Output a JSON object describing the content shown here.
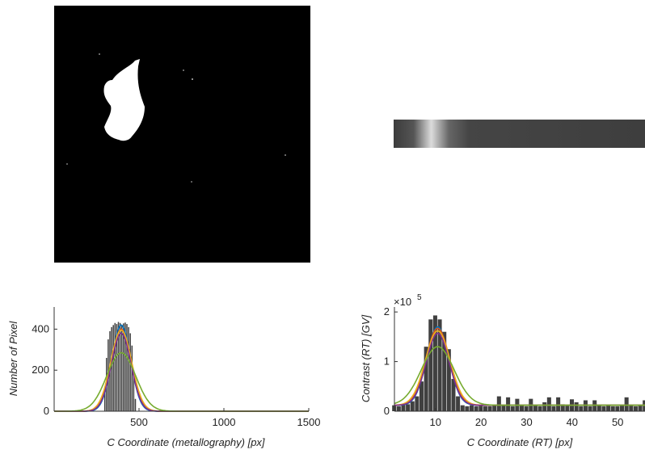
{
  "chart_data": [
    {
      "type": "bar",
      "xlabel": "C Coordinate (metallography) [px]",
      "ylabel": "Number of Pixel",
      "xlim": [
        0,
        1500
      ],
      "ylim": [
        0,
        500
      ],
      "xticks": [
        500,
        1000,
        1500
      ],
      "yticks": [
        0,
        200,
        400
      ],
      "bins": [
        {
          "x": 300,
          "y": 120
        },
        {
          "x": 310,
          "y": 260
        },
        {
          "x": 320,
          "y": 350
        },
        {
          "x": 330,
          "y": 390
        },
        {
          "x": 340,
          "y": 410
        },
        {
          "x": 350,
          "y": 420
        },
        {
          "x": 360,
          "y": 430
        },
        {
          "x": 370,
          "y": 425
        },
        {
          "x": 380,
          "y": 435
        },
        {
          "x": 390,
          "y": 430
        },
        {
          "x": 400,
          "y": 420
        },
        {
          "x": 410,
          "y": 428
        },
        {
          "x": 420,
          "y": 432
        },
        {
          "x": 430,
          "y": 425
        },
        {
          "x": 440,
          "y": 410
        },
        {
          "x": 450,
          "y": 380
        },
        {
          "x": 460,
          "y": 320
        },
        {
          "x": 470,
          "y": 200
        },
        {
          "x": 480,
          "y": 60
        }
      ],
      "fits": [
        {
          "color": "#0072bd",
          "mu": 395,
          "sigma": 55,
          "amp": 420
        },
        {
          "color": "#d95319",
          "mu": 395,
          "sigma": 60,
          "amp": 400
        },
        {
          "color": "#edb120",
          "mu": 395,
          "sigma": 62,
          "amp": 395
        },
        {
          "color": "#7e2f8e",
          "mu": 395,
          "sigma": 58,
          "amp": 380
        },
        {
          "color": "#77ac30",
          "mu": 395,
          "sigma": 85,
          "amp": 285
        }
      ]
    },
    {
      "type": "bar",
      "xlabel": "C Coordinate (RT) [px]",
      "ylabel": "Contrast (RT) [GV]",
      "y_exponent": "×10",
      "y_exponent_power": "5",
      "xlim": [
        1,
        56
      ],
      "ylim": [
        0,
        2.1
      ],
      "xticks": [
        10,
        20,
        30,
        40,
        50
      ],
      "yticks": [
        0,
        1,
        2
      ],
      "bins": [
        {
          "x": 1,
          "y": 0.12
        },
        {
          "x": 2,
          "y": 0.1
        },
        {
          "x": 3,
          "y": 0.15
        },
        {
          "x": 4,
          "y": 0.14
        },
        {
          "x": 5,
          "y": 0.2
        },
        {
          "x": 6,
          "y": 0.3
        },
        {
          "x": 7,
          "y": 0.6
        },
        {
          "x": 8,
          "y": 1.3
        },
        {
          "x": 9,
          "y": 1.85
        },
        {
          "x": 10,
          "y": 1.93
        },
        {
          "x": 11,
          "y": 1.85
        },
        {
          "x": 12,
          "y": 1.6
        },
        {
          "x": 13,
          "y": 1.25
        },
        {
          "x": 14,
          "y": 0.65
        },
        {
          "x": 15,
          "y": 0.3
        },
        {
          "x": 16,
          "y": 0.12
        },
        {
          "x": 17,
          "y": 0.1
        },
        {
          "x": 18,
          "y": 0.12
        },
        {
          "x": 19,
          "y": 0.1
        },
        {
          "x": 20,
          "y": 0.12
        },
        {
          "x": 21,
          "y": 0.1
        },
        {
          "x": 22,
          "y": 0.1
        },
        {
          "x": 23,
          "y": 0.13
        },
        {
          "x": 24,
          "y": 0.3
        },
        {
          "x": 25,
          "y": 0.12
        },
        {
          "x": 26,
          "y": 0.28
        },
        {
          "x": 27,
          "y": 0.1
        },
        {
          "x": 28,
          "y": 0.25
        },
        {
          "x": 29,
          "y": 0.12
        },
        {
          "x": 30,
          "y": 0.1
        },
        {
          "x": 31,
          "y": 0.25
        },
        {
          "x": 32,
          "y": 0.12
        },
        {
          "x": 33,
          "y": 0.1
        },
        {
          "x": 34,
          "y": 0.18
        },
        {
          "x": 35,
          "y": 0.28
        },
        {
          "x": 36,
          "y": 0.1
        },
        {
          "x": 37,
          "y": 0.28
        },
        {
          "x": 38,
          "y": 0.14
        },
        {
          "x": 39,
          "y": 0.12
        },
        {
          "x": 40,
          "y": 0.24
        },
        {
          "x": 41,
          "y": 0.18
        },
        {
          "x": 42,
          "y": 0.1
        },
        {
          "x": 43,
          "y": 0.22
        },
        {
          "x": 44,
          "y": 0.1
        },
        {
          "x": 45,
          "y": 0.22
        },
        {
          "x": 46,
          "y": 0.12
        },
        {
          "x": 47,
          "y": 0.1
        },
        {
          "x": 48,
          "y": 0.12
        },
        {
          "x": 49,
          "y": 0.1
        },
        {
          "x": 50,
          "y": 0.1
        },
        {
          "x": 51,
          "y": 0.12
        },
        {
          "x": 52,
          "y": 0.28
        },
        {
          "x": 53,
          "y": 0.12
        },
        {
          "x": 54,
          "y": 0.1
        },
        {
          "x": 55,
          "y": 0.12
        },
        {
          "x": 56,
          "y": 0.22
        }
      ],
      "fits": [
        {
          "color": "#0072bd",
          "mu": 10.5,
          "sigma": 2.4,
          "amp": 1.58,
          "base": 0.12
        },
        {
          "color": "#d95319",
          "mu": 10.5,
          "sigma": 2.6,
          "amp": 1.55,
          "base": 0.12
        },
        {
          "color": "#edb120",
          "mu": 10.5,
          "sigma": 2.7,
          "amp": 1.5,
          "base": 0.12
        },
        {
          "color": "#7e2f8e",
          "mu": 10.5,
          "sigma": 2.5,
          "amp": 1.45,
          "base": 0.12
        },
        {
          "color": "#77ac30",
          "mu": 10.5,
          "sigma": 3.6,
          "amp": 1.18,
          "base": 0.12
        }
      ]
    }
  ]
}
